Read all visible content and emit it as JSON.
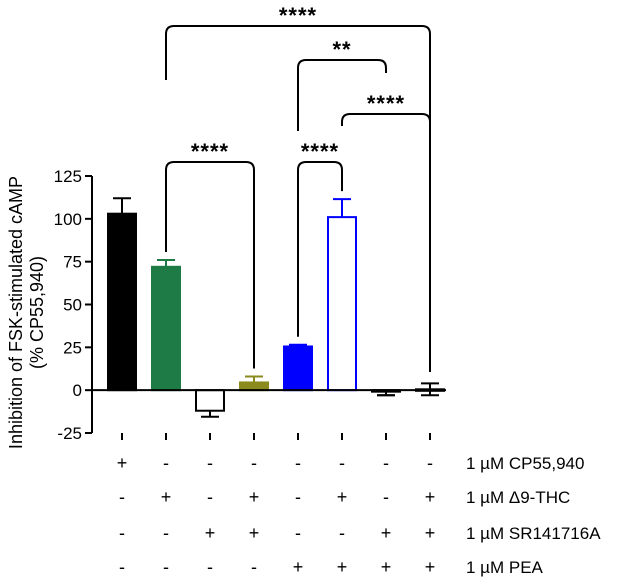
{
  "chart_data": {
    "type": "bar",
    "ylabel": "Inhibition of FSK-stimulated cAMP\n(% CP55,940)",
    "ylim": [
      -25,
      125
    ],
    "yticks": [
      -25,
      0,
      25,
      50,
      75,
      100,
      125
    ],
    "ytick_labels": [
      "-25",
      "0",
      "25",
      "50",
      "75",
      "100",
      "125"
    ],
    "grid": false,
    "bars": [
      {
        "value": 103,
        "error": 9,
        "fill": "#000000",
        "stroke": "#000000",
        "filled": true
      },
      {
        "value": 72,
        "error": 4,
        "fill": "#1e7b45",
        "stroke": "#1e7b45",
        "filled": true
      },
      {
        "value": -12,
        "error": 3.5,
        "fill": "#ffffff",
        "stroke": "#000000",
        "filled": false
      },
      {
        "value": 4.5,
        "error": 3.5,
        "fill": "#8b8a1c",
        "stroke": "#8b8a1c",
        "filled": true
      },
      {
        "value": 25.5,
        "error": 1,
        "fill": "#0000ff",
        "stroke": "#0000ff",
        "filled": true
      },
      {
        "value": 101,
        "error": 10.5,
        "fill": "#ffffff",
        "stroke": "#0000ff",
        "filled": false
      },
      {
        "value": -0.5,
        "error": 2.5,
        "fill": "#ffffff",
        "stroke": "#000000",
        "filled": false
      },
      {
        "value": 0.5,
        "error": 3.5,
        "fill": "#ffffff",
        "stroke": "#000000",
        "filled": false
      }
    ],
    "conditions": [
      {
        "label": "1 µM CP55,940",
        "values": [
          "+",
          "-",
          "-",
          "-",
          "-",
          "-",
          "-",
          "-"
        ]
      },
      {
        "label": "1 µM Δ9-THC",
        "values": [
          "-",
          "+",
          "-",
          "+",
          "-",
          "+",
          "-",
          "+"
        ]
      },
      {
        "label": "1 µM SR141716A",
        "values": [
          "-",
          "-",
          "+",
          "+",
          "-",
          "-",
          "+",
          "+"
        ]
      },
      {
        "label": "1 µM PEA",
        "values": [
          "-",
          "-",
          "-",
          "-",
          "+",
          "+",
          "+",
          "+"
        ]
      }
    ],
    "significance": [
      {
        "from_bar": 2,
        "to_bar": 4,
        "label": "****",
        "level": 1
      },
      {
        "from_bar": 5,
        "to_bar": 6,
        "label": "****",
        "level": 1
      },
      {
        "from_bar": 6,
        "to_bar": 8,
        "label": "****",
        "level": 2
      },
      {
        "from_bar": 5,
        "to_bar": 7,
        "label": "**",
        "level": 3
      },
      {
        "from_bar": 2,
        "to_bar": 8,
        "label": "****",
        "level": 4
      }
    ]
  }
}
